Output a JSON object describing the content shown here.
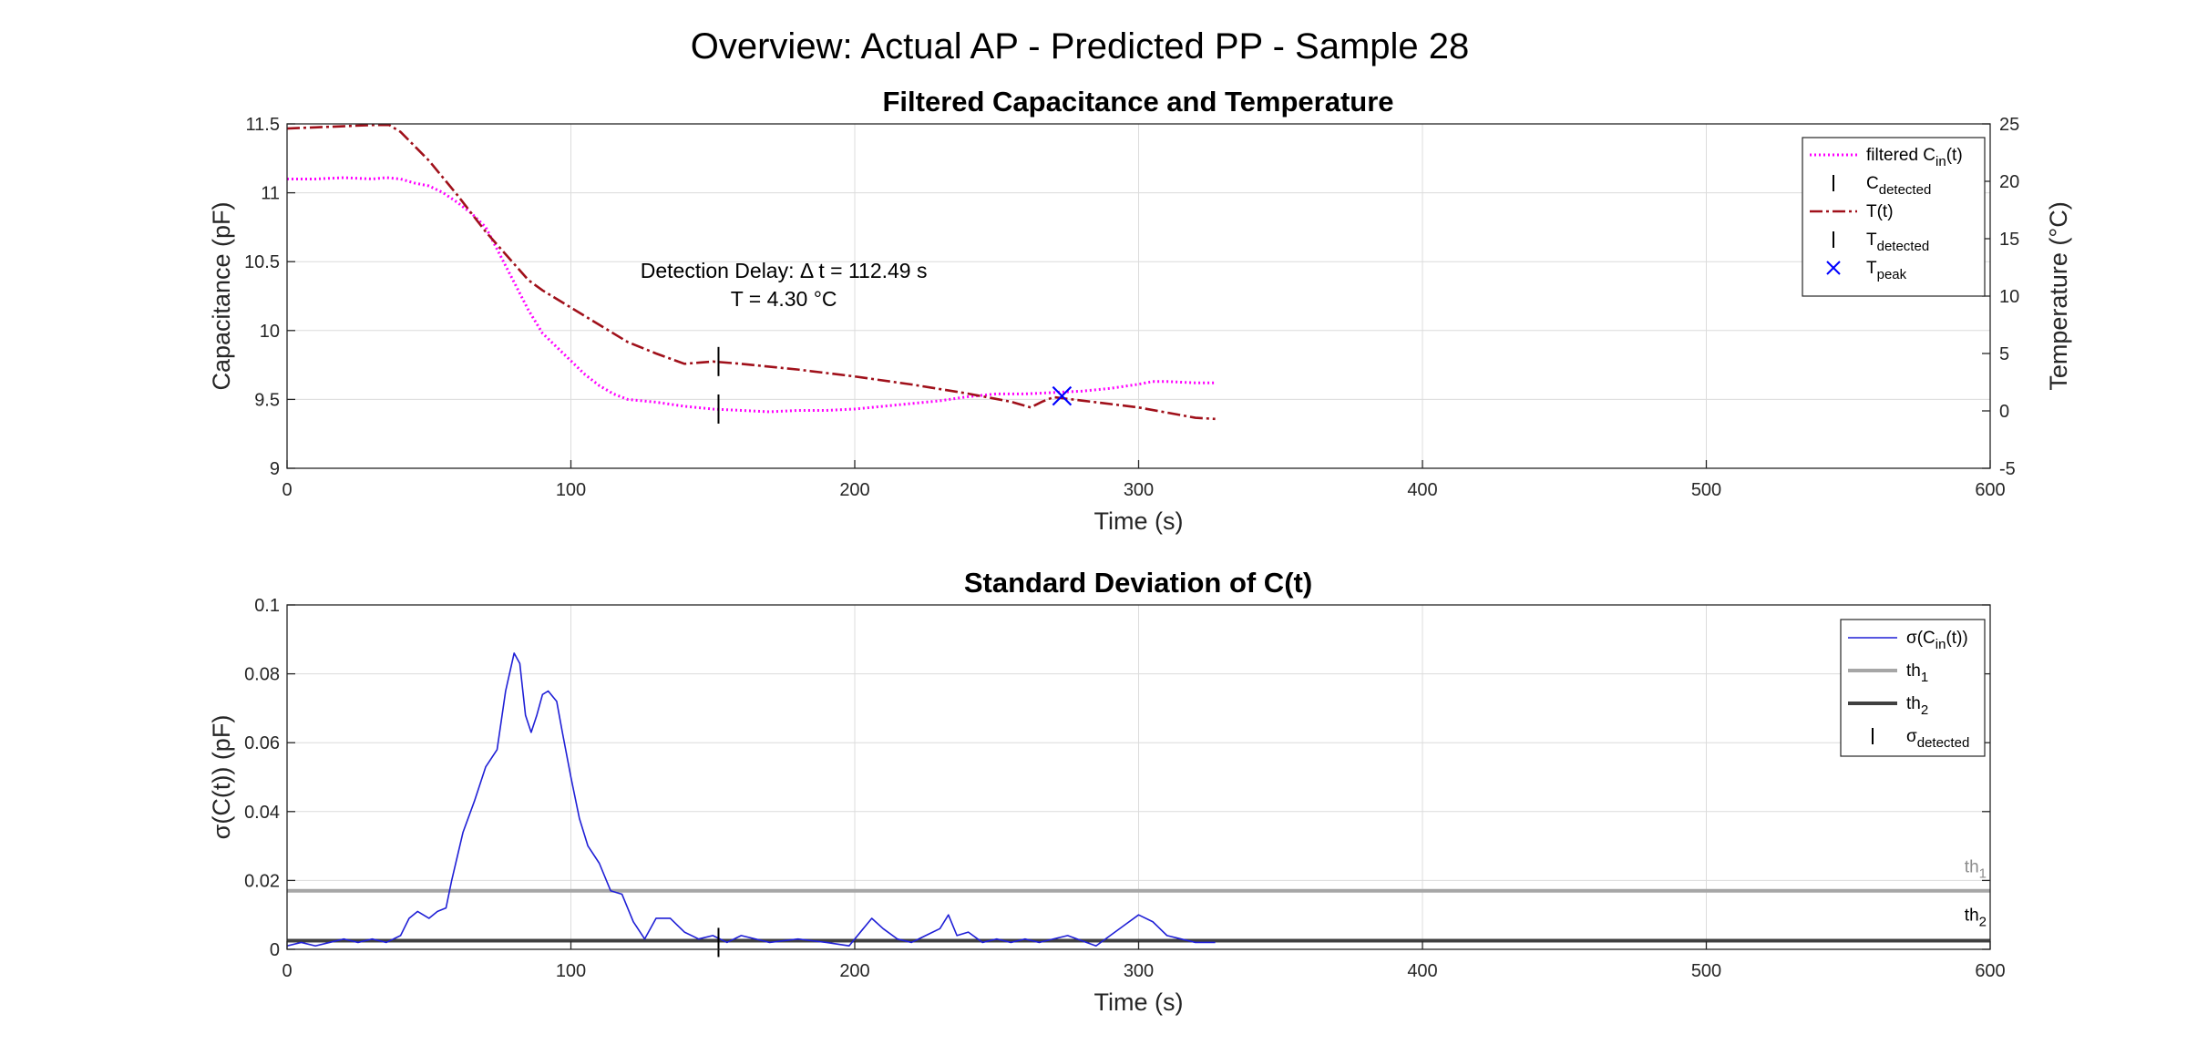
{
  "figure": {
    "suptitle": "Overview: Actual AP - Predicted PP - Sample 28"
  },
  "chart_data": [
    {
      "type": "line",
      "title": "Filtered Capacitance and Temperature",
      "xlabel": "Time (s)",
      "ylabel": "Capacitance (pF)",
      "y2label": "Temperature (°C)",
      "xlim": [
        0,
        600
      ],
      "ylim": [
        9,
        11.5
      ],
      "y2lim": [
        -5,
        25
      ],
      "xticks": [
        "0",
        "100",
        "200",
        "300",
        "400",
        "500",
        "600"
      ],
      "yticks": [
        "9",
        "9.5",
        "10",
        "10.5",
        "11",
        "11.5"
      ],
      "y2ticks": [
        "-5",
        "0",
        "5",
        "10",
        "15",
        "20",
        "25"
      ],
      "grid": true,
      "legend_position": "top-right",
      "colors": {
        "cap": "#ff00ff",
        "temp": "#a0101a",
        "marker": "#000000",
        "peak": "#0000ff"
      },
      "series": [
        {
          "name": "filtered C_in(t)",
          "axis": "left",
          "x": [
            0,
            10,
            20,
            30,
            35,
            40,
            45,
            50,
            55,
            60,
            65,
            70,
            75,
            80,
            85,
            90,
            95,
            100,
            105,
            110,
            115,
            120,
            130,
            140,
            150,
            160,
            170,
            180,
            190,
            200,
            210,
            220,
            230,
            240,
            250,
            260,
            270,
            280,
            290,
            300,
            305,
            310,
            320,
            327
          ],
          "values": [
            11.1,
            11.1,
            11.11,
            11.1,
            11.11,
            11.1,
            11.07,
            11.05,
            11.0,
            10.93,
            10.85,
            10.75,
            10.55,
            10.35,
            10.15,
            9.98,
            9.88,
            9.78,
            9.68,
            9.6,
            9.54,
            9.5,
            9.48,
            9.45,
            9.43,
            9.42,
            9.41,
            9.42,
            9.42,
            9.43,
            9.45,
            9.47,
            9.49,
            9.52,
            9.54,
            9.54,
            9.55,
            9.56,
            9.58,
            9.61,
            9.63,
            9.63,
            9.62,
            9.62
          ]
        },
        {
          "name": "T(t)",
          "axis": "right",
          "x": [
            0,
            10,
            20,
            30,
            36,
            40,
            50,
            60,
            70,
            80,
            85,
            90,
            100,
            110,
            120,
            130,
            140,
            145,
            150,
            160,
            180,
            200,
            220,
            240,
            255,
            262,
            266,
            270,
            280,
            300,
            320,
            327
          ],
          "values": [
            24.6,
            24.7,
            24.8,
            24.9,
            24.9,
            24.3,
            21.8,
            18.8,
            15.6,
            12.8,
            11.4,
            10.5,
            9.0,
            7.5,
            6.0,
            5.0,
            4.1,
            4.2,
            4.3,
            4.1,
            3.6,
            3.0,
            2.3,
            1.5,
            0.8,
            0.3,
            0.8,
            1.2,
            0.9,
            0.3,
            -0.6,
            -0.7
          ]
        }
      ],
      "markers": [
        {
          "name": "C_detected",
          "x": 152,
          "y": 9.43,
          "axis": "left",
          "symbol": "vline"
        },
        {
          "name": "T_detected",
          "x": 152,
          "y": 4.3,
          "axis": "right",
          "symbol": "vline"
        },
        {
          "name": "T_peak",
          "x": 273,
          "y": 1.3,
          "axis": "right",
          "symbol": "x"
        }
      ],
      "legend": [
        {
          "label": "filtered C",
          "sub": "in",
          "suffix": "(t)"
        },
        {
          "label": "C",
          "sub": "detected",
          "suffix": ""
        },
        {
          "label": "T(t)",
          "sub": "",
          "suffix": ""
        },
        {
          "label": "T",
          "sub": "detected",
          "suffix": ""
        },
        {
          "label": "T",
          "sub": "peak",
          "suffix": ""
        }
      ],
      "annotation": {
        "line1": "Detection Delay: Δ t = 112.49 s",
        "line2": "T = 4.30 °C",
        "x": 175,
        "y": 10.45
      }
    },
    {
      "type": "line",
      "title": "Standard Deviation of C(t)",
      "xlabel": "Time (s)",
      "ylabel": "σ(C(t)) (pF)",
      "xlim": [
        0,
        600
      ],
      "ylim": [
        0,
        0.1
      ],
      "xticks": [
        "0",
        "100",
        "200",
        "300",
        "400",
        "500",
        "600"
      ],
      "yticks": [
        "0",
        "0.02",
        "0.04",
        "0.06",
        "0.08",
        "0.1"
      ],
      "grid": true,
      "legend_position": "top-right",
      "colors": {
        "sigma": "#1f1fd6",
        "th1": "#a6a6a6",
        "th2": "#404040",
        "marker": "#000000"
      },
      "series": [
        {
          "name": "σ(C_in(t))",
          "x": [
            0,
            5,
            10,
            15,
            20,
            25,
            30,
            35,
            40,
            43,
            46,
            50,
            53,
            56,
            58,
            62,
            66,
            70,
            74,
            77,
            80,
            82,
            84,
            86,
            88,
            90,
            92,
            95,
            97,
            100,
            103,
            106,
            110,
            114,
            118,
            122,
            126,
            130,
            135,
            140,
            145,
            150,
            155,
            160,
            170,
            180,
            190,
            198,
            203,
            206,
            210,
            215,
            220,
            225,
            230,
            233,
            236,
            240,
            245,
            250,
            255,
            260,
            265,
            275,
            285,
            295,
            300,
            305,
            310,
            315,
            320,
            327
          ],
          "values": [
            0.001,
            0.002,
            0.001,
            0.002,
            0.003,
            0.002,
            0.003,
            0.002,
            0.004,
            0.009,
            0.011,
            0.009,
            0.011,
            0.012,
            0.02,
            0.034,
            0.043,
            0.053,
            0.058,
            0.075,
            0.086,
            0.083,
            0.068,
            0.063,
            0.068,
            0.074,
            0.075,
            0.072,
            0.063,
            0.05,
            0.038,
            0.03,
            0.025,
            0.017,
            0.016,
            0.008,
            0.003,
            0.009,
            0.009,
            0.005,
            0.003,
            0.004,
            0.002,
            0.004,
            0.002,
            0.003,
            0.002,
            0.001,
            0.006,
            0.009,
            0.006,
            0.003,
            0.002,
            0.004,
            0.006,
            0.01,
            0.004,
            0.005,
            0.002,
            0.003,
            0.002,
            0.003,
            0.002,
            0.004,
            0.001,
            0.007,
            0.01,
            0.008,
            0.004,
            0.003,
            0.002,
            0.002
          ]
        }
      ],
      "thresholds": [
        {
          "name": "th1",
          "value": 0.017
        },
        {
          "name": "th2",
          "value": 0.0025
        }
      ],
      "markers": [
        {
          "name": "σ_detected",
          "x": 152,
          "y": 0.002,
          "symbol": "vline"
        }
      ],
      "legend": [
        {
          "label": "σ(C",
          "sub": "in",
          "suffix": "(t))"
        },
        {
          "label": "th",
          "sub": "1",
          "suffix": ""
        },
        {
          "label": "th",
          "sub": "2",
          "suffix": ""
        },
        {
          "label": "σ",
          "sub": "detected",
          "suffix": ""
        }
      ],
      "threshold_labels": [
        {
          "label": "th",
          "sub": "1"
        },
        {
          "label": "th",
          "sub": "2"
        }
      ]
    }
  ]
}
